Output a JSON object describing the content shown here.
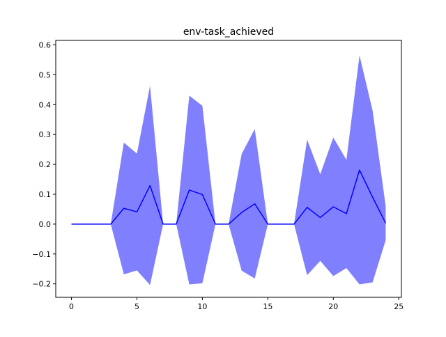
{
  "chart_data": {
    "type": "line",
    "title": "env-task_achieved",
    "xlabel": "",
    "ylabel": "",
    "xlim": [
      -1.2,
      25.2
    ],
    "ylim": [
      -0.245,
      0.615
    ],
    "x_ticks": [
      0,
      5,
      10,
      15,
      20,
      25
    ],
    "x_tick_labels": [
      "0",
      "5",
      "10",
      "15",
      "20",
      "25"
    ],
    "y_ticks": [
      -0.2,
      -0.1,
      0.0,
      0.1,
      0.2,
      0.3,
      0.4,
      0.5,
      0.6
    ],
    "y_tick_labels": [
      "−0.2",
      "−0.1",
      "0.0",
      "0.1",
      "0.2",
      "0.3",
      "0.4",
      "0.5",
      "0.6"
    ],
    "grid": false,
    "series": [
      {
        "x": [
          0,
          1,
          2,
          3,
          4,
          5,
          6,
          7,
          8,
          9,
          10,
          11,
          12,
          13,
          14,
          15,
          16,
          17,
          18,
          19,
          20,
          21,
          22,
          23,
          24
        ],
        "mean": [
          0,
          0,
          0,
          0,
          0.053,
          0.041,
          0.129,
          0,
          0,
          0.114,
          0.099,
          0,
          0,
          0.039,
          0.068,
          0,
          0,
          0,
          0.056,
          0.022,
          0.058,
          0.035,
          0.181,
          0.09,
          0.003
        ],
        "upper": [
          0,
          0,
          0,
          0,
          0.273,
          0.236,
          0.463,
          0,
          0,
          0.43,
          0.396,
          0,
          0,
          0.235,
          0.318,
          0,
          0,
          0,
          0.283,
          0.167,
          0.29,
          0.215,
          0.565,
          0.38,
          0.06
        ],
        "lower": [
          0,
          0,
          0,
          0,
          -0.168,
          -0.155,
          -0.204,
          0,
          0,
          -0.202,
          -0.198,
          0,
          0,
          -0.156,
          -0.182,
          0,
          0,
          0,
          -0.171,
          -0.123,
          -0.174,
          -0.147,
          -0.202,
          -0.195,
          -0.054
        ],
        "line_color": "#0000ff",
        "band_color": "#8080ff"
      }
    ]
  }
}
